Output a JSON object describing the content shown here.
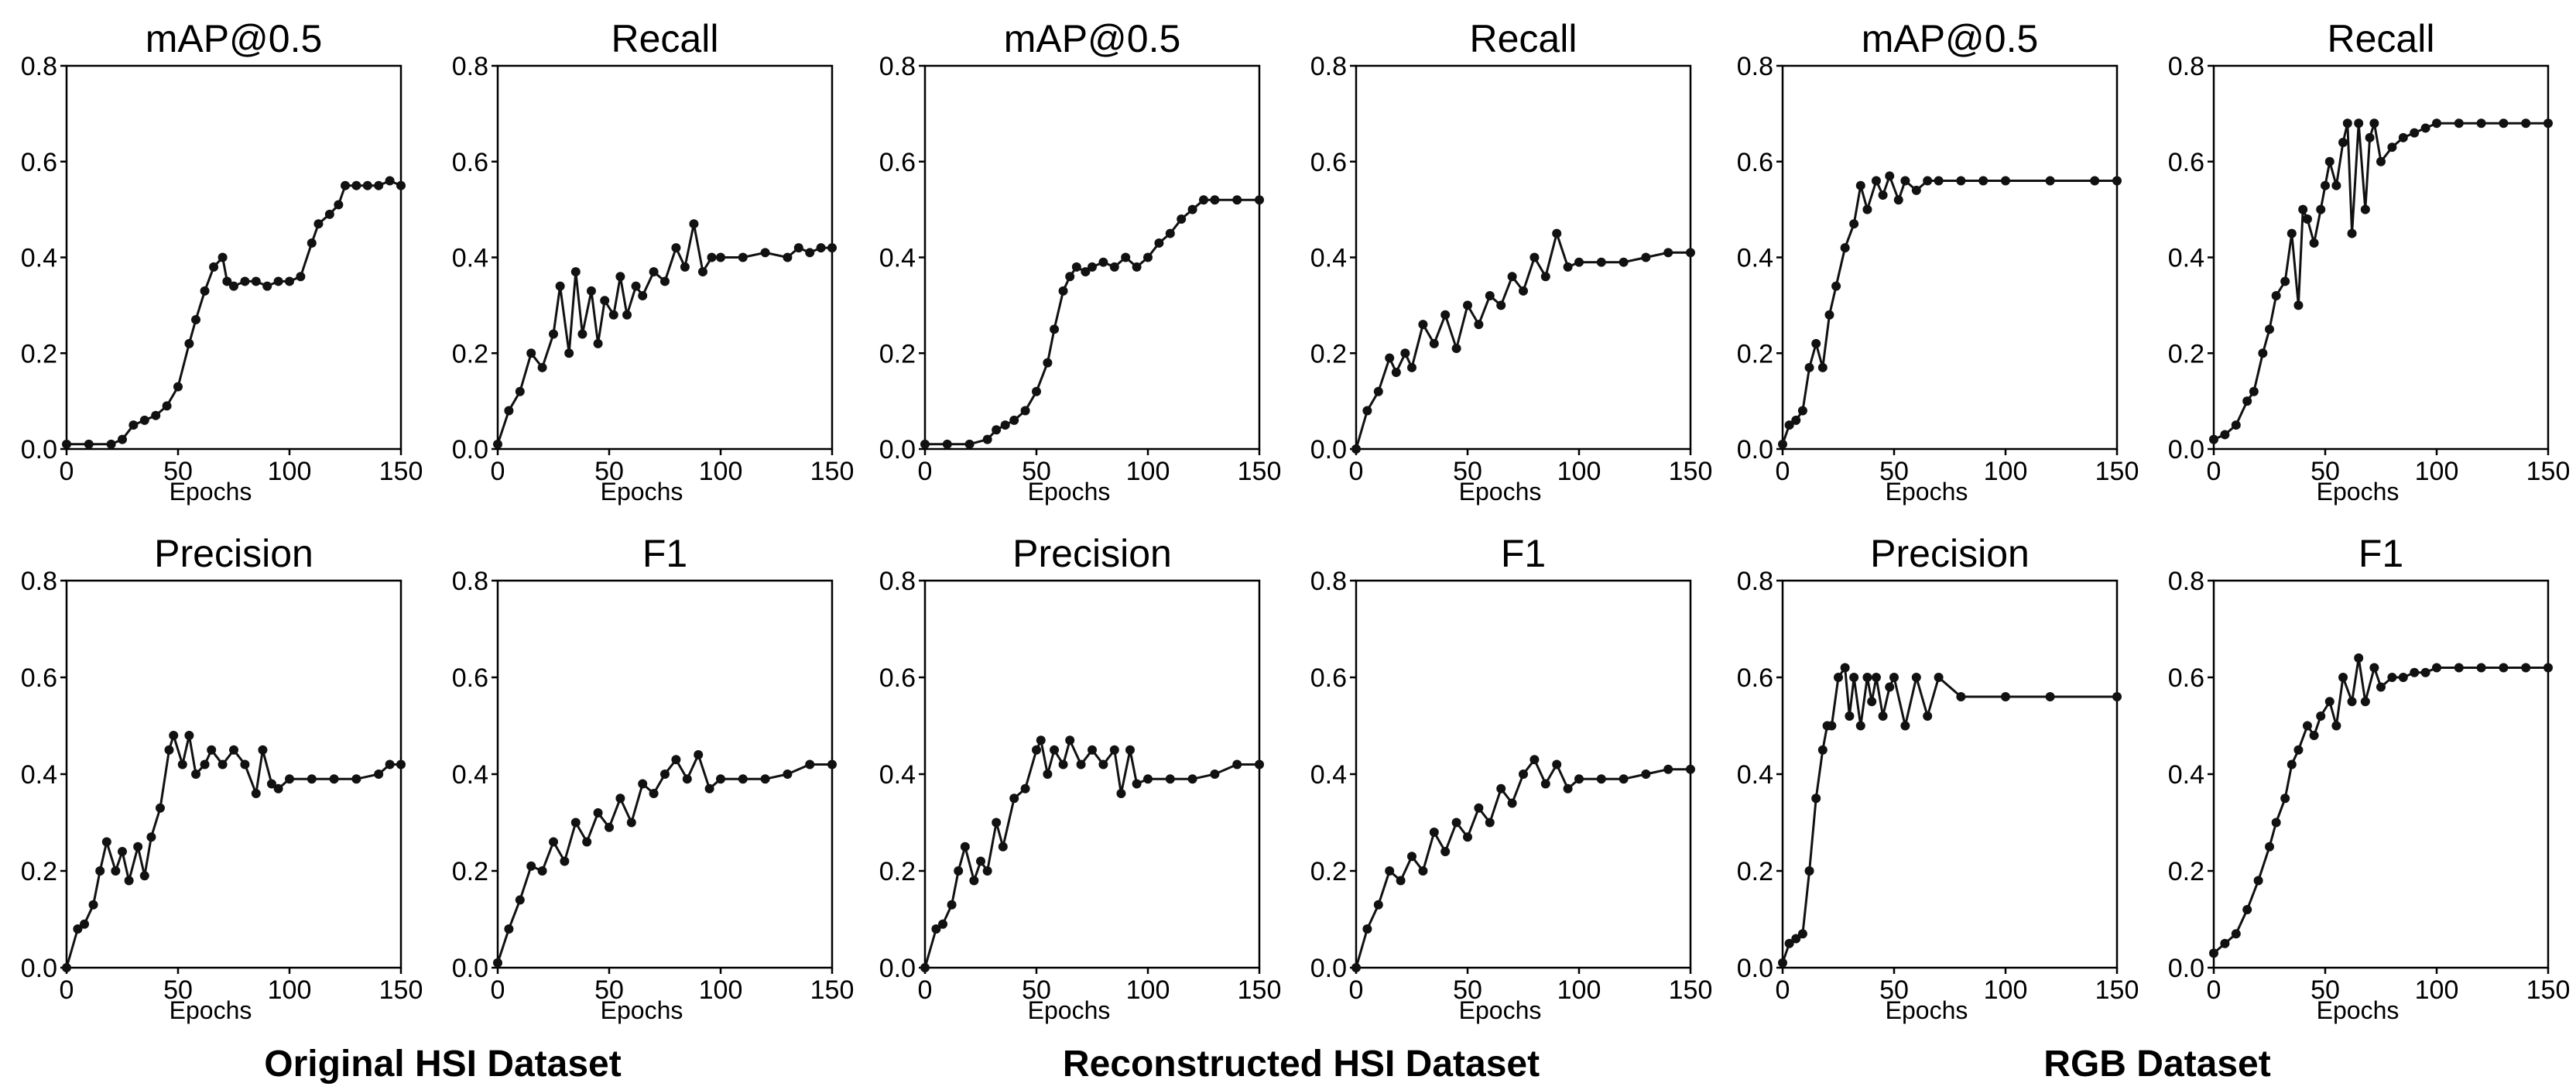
{
  "chart_data": [
    {
      "type": "line",
      "group": "Original HSI Dataset",
      "title": "mAP@0.5",
      "xlabel": "Epochs",
      "ylabel": "",
      "xlim": [
        0,
        150
      ],
      "ylim": [
        0,
        0.8
      ],
      "xticks": [
        "0",
        "50",
        "100",
        "150"
      ],
      "yticks": [
        "0.0",
        "0.2",
        "0.4",
        "0.6",
        "0.8"
      ],
      "x": [
        0,
        10,
        20,
        25,
        30,
        35,
        40,
        45,
        50,
        55,
        58,
        62,
        66,
        70,
        72,
        75,
        80,
        85,
        90,
        95,
        100,
        105,
        110,
        113,
        118,
        122,
        125,
        130,
        135,
        140,
        145,
        150
      ],
      "y": [
        0.01,
        0.01,
        0.01,
        0.02,
        0.05,
        0.06,
        0.07,
        0.09,
        0.13,
        0.22,
        0.27,
        0.33,
        0.38,
        0.4,
        0.35,
        0.34,
        0.35,
        0.35,
        0.34,
        0.35,
        0.35,
        0.36,
        0.43,
        0.47,
        0.49,
        0.51,
        0.55,
        0.55,
        0.55,
        0.55,
        0.56,
        0.55
      ]
    },
    {
      "type": "line",
      "group": "Original HSI Dataset",
      "title": "Recall",
      "xlabel": "Epochs",
      "ylabel": "",
      "xlim": [
        0,
        150
      ],
      "ylim": [
        0,
        0.8
      ],
      "xticks": [
        "0",
        "50",
        "100",
        "150"
      ],
      "yticks": [
        "0.0",
        "0.2",
        "0.4",
        "0.6",
        "0.8"
      ],
      "x": [
        0,
        5,
        10,
        15,
        20,
        25,
        28,
        32,
        35,
        38,
        42,
        45,
        48,
        52,
        55,
        58,
        62,
        65,
        70,
        75,
        80,
        84,
        88,
        92,
        96,
        100,
        110,
        120,
        130,
        135,
        140,
        145,
        150
      ],
      "y": [
        0.01,
        0.08,
        0.12,
        0.2,
        0.17,
        0.24,
        0.34,
        0.2,
        0.37,
        0.24,
        0.33,
        0.22,
        0.31,
        0.28,
        0.36,
        0.28,
        0.34,
        0.32,
        0.37,
        0.35,
        0.42,
        0.38,
        0.47,
        0.37,
        0.4,
        0.4,
        0.4,
        0.41,
        0.4,
        0.42,
        0.41,
        0.42,
        0.42
      ]
    },
    {
      "type": "line",
      "group": "Reconstructed HSI Dataset",
      "title": "mAP@0.5",
      "xlabel": "Epochs",
      "ylabel": "",
      "xlim": [
        0,
        150
      ],
      "ylim": [
        0,
        0.8
      ],
      "xticks": [
        "0",
        "50",
        "100",
        "150"
      ],
      "yticks": [
        "0.0",
        "0.2",
        "0.4",
        "0.6",
        "0.8"
      ],
      "x": [
        0,
        10,
        20,
        28,
        32,
        36,
        40,
        45,
        50,
        55,
        58,
        62,
        65,
        68,
        72,
        75,
        80,
        85,
        90,
        95,
        100,
        105,
        110,
        115,
        120,
        125,
        130,
        140,
        150
      ],
      "y": [
        0.01,
        0.01,
        0.01,
        0.02,
        0.04,
        0.05,
        0.06,
        0.08,
        0.12,
        0.18,
        0.25,
        0.33,
        0.36,
        0.38,
        0.37,
        0.38,
        0.39,
        0.38,
        0.4,
        0.38,
        0.4,
        0.43,
        0.45,
        0.48,
        0.5,
        0.52,
        0.52,
        0.52,
        0.52
      ]
    },
    {
      "type": "line",
      "group": "Reconstructed HSI Dataset",
      "title": "Recall",
      "xlabel": "Epochs",
      "ylabel": "",
      "xlim": [
        0,
        150
      ],
      "ylim": [
        0,
        0.8
      ],
      "xticks": [
        "0",
        "50",
        "100",
        "150"
      ],
      "yticks": [
        "0.0",
        "0.2",
        "0.4",
        "0.6",
        "0.8"
      ],
      "x": [
        0,
        5,
        10,
        15,
        18,
        22,
        25,
        30,
        35,
        40,
        45,
        50,
        55,
        60,
        65,
        70,
        75,
        80,
        85,
        90,
        95,
        100,
        110,
        120,
        130,
        140,
        150
      ],
      "y": [
        0.0,
        0.08,
        0.12,
        0.19,
        0.16,
        0.2,
        0.17,
        0.26,
        0.22,
        0.28,
        0.21,
        0.3,
        0.26,
        0.32,
        0.3,
        0.36,
        0.33,
        0.4,
        0.36,
        0.45,
        0.38,
        0.39,
        0.39,
        0.39,
        0.4,
        0.41,
        0.41
      ]
    },
    {
      "type": "line",
      "group": "RGB Dataset",
      "title": "mAP@0.5",
      "xlabel": "Epochs",
      "ylabel": "",
      "xlim": [
        0,
        150
      ],
      "ylim": [
        0,
        0.8
      ],
      "xticks": [
        "0",
        "50",
        "100",
        "150"
      ],
      "yticks": [
        "0.0",
        "0.2",
        "0.4",
        "0.6",
        "0.8"
      ],
      "x": [
        0,
        3,
        6,
        9,
        12,
        15,
        18,
        21,
        24,
        28,
        32,
        35,
        38,
        42,
        45,
        48,
        52,
        55,
        60,
        65,
        70,
        80,
        90,
        100,
        120,
        140,
        150
      ],
      "y": [
        0.01,
        0.05,
        0.06,
        0.08,
        0.17,
        0.22,
        0.17,
        0.28,
        0.34,
        0.42,
        0.47,
        0.55,
        0.5,
        0.56,
        0.53,
        0.57,
        0.52,
        0.56,
        0.54,
        0.56,
        0.56,
        0.56,
        0.56,
        0.56,
        0.56,
        0.56,
        0.56
      ]
    },
    {
      "type": "line",
      "group": "RGB Dataset",
      "title": "Recall",
      "xlabel": "Epochs",
      "ylabel": "",
      "xlim": [
        0,
        150
      ],
      "ylim": [
        0,
        0.8
      ],
      "xticks": [
        "0",
        "50",
        "100",
        "150"
      ],
      "yticks": [
        "0.0",
        "0.2",
        "0.4",
        "0.6",
        "0.8"
      ],
      "x": [
        0,
        5,
        10,
        15,
        18,
        22,
        25,
        28,
        32,
        35,
        38,
        40,
        42,
        45,
        48,
        50,
        52,
        55,
        58,
        60,
        62,
        65,
        68,
        70,
        72,
        75,
        80,
        85,
        90,
        95,
        100,
        110,
        120,
        130,
        140,
        150
      ],
      "y": [
        0.02,
        0.03,
        0.05,
        0.1,
        0.12,
        0.2,
        0.25,
        0.32,
        0.35,
        0.45,
        0.3,
        0.5,
        0.48,
        0.43,
        0.5,
        0.55,
        0.6,
        0.55,
        0.64,
        0.68,
        0.45,
        0.68,
        0.5,
        0.65,
        0.68,
        0.6,
        0.63,
        0.65,
        0.66,
        0.67,
        0.68,
        0.68,
        0.68,
        0.68,
        0.68,
        0.68
      ]
    },
    {
      "type": "line",
      "group": "Original HSI Dataset",
      "title": "Precision",
      "xlabel": "Epochs",
      "ylabel": "",
      "xlim": [
        0,
        150
      ],
      "ylim": [
        0,
        0.8
      ],
      "xticks": [
        "0",
        "50",
        "100",
        "150"
      ],
      "yticks": [
        "0.0",
        "0.2",
        "0.4",
        "0.6",
        "0.8"
      ],
      "x": [
        0,
        5,
        8,
        12,
        15,
        18,
        22,
        25,
        28,
        32,
        35,
        38,
        42,
        46,
        48,
        52,
        55,
        58,
        62,
        65,
        70,
        75,
        80,
        85,
        88,
        92,
        95,
        100,
        110,
        120,
        130,
        140,
        145,
        150
      ],
      "y": [
        0.0,
        0.08,
        0.09,
        0.13,
        0.2,
        0.26,
        0.2,
        0.24,
        0.18,
        0.25,
        0.19,
        0.27,
        0.33,
        0.45,
        0.48,
        0.42,
        0.48,
        0.4,
        0.42,
        0.45,
        0.42,
        0.45,
        0.42,
        0.36,
        0.45,
        0.38,
        0.37,
        0.39,
        0.39,
        0.39,
        0.39,
        0.4,
        0.42,
        0.42
      ]
    },
    {
      "type": "line",
      "group": "Original HSI Dataset",
      "title": "F1",
      "xlabel": "Epochs",
      "ylabel": "",
      "xlim": [
        0,
        150
      ],
      "ylim": [
        0,
        0.8
      ],
      "xticks": [
        "0",
        "50",
        "100",
        "150"
      ],
      "yticks": [
        "0.0",
        "0.2",
        "0.4",
        "0.6",
        "0.8"
      ],
      "x": [
        0,
        5,
        10,
        15,
        20,
        25,
        30,
        35,
        40,
        45,
        50,
        55,
        60,
        65,
        70,
        75,
        80,
        85,
        90,
        95,
        100,
        110,
        120,
        130,
        140,
        150
      ],
      "y": [
        0.01,
        0.08,
        0.14,
        0.21,
        0.2,
        0.26,
        0.22,
        0.3,
        0.26,
        0.32,
        0.29,
        0.35,
        0.3,
        0.38,
        0.36,
        0.4,
        0.43,
        0.39,
        0.44,
        0.37,
        0.39,
        0.39,
        0.39,
        0.4,
        0.42,
        0.42
      ]
    },
    {
      "type": "line",
      "group": "Reconstructed HSI Dataset",
      "title": "Precision",
      "xlabel": "Epochs",
      "ylabel": "",
      "xlim": [
        0,
        150
      ],
      "ylim": [
        0,
        0.8
      ],
      "xticks": [
        "0",
        "50",
        "100",
        "150"
      ],
      "yticks": [
        "0.0",
        "0.2",
        "0.4",
        "0.6",
        "0.8"
      ],
      "x": [
        0,
        5,
        8,
        12,
        15,
        18,
        22,
        25,
        28,
        32,
        35,
        40,
        45,
        50,
        52,
        55,
        58,
        62,
        65,
        70,
        75,
        80,
        85,
        88,
        92,
        95,
        100,
        110,
        120,
        130,
        140,
        150
      ],
      "y": [
        0.0,
        0.08,
        0.09,
        0.13,
        0.2,
        0.25,
        0.18,
        0.22,
        0.2,
        0.3,
        0.25,
        0.35,
        0.37,
        0.45,
        0.47,
        0.4,
        0.45,
        0.42,
        0.47,
        0.42,
        0.45,
        0.42,
        0.45,
        0.36,
        0.45,
        0.38,
        0.39,
        0.39,
        0.39,
        0.4,
        0.42,
        0.42
      ]
    },
    {
      "type": "line",
      "group": "Reconstructed HSI Dataset",
      "title": "F1",
      "xlabel": "Epochs",
      "ylabel": "",
      "xlim": [
        0,
        150
      ],
      "ylim": [
        0,
        0.8
      ],
      "xticks": [
        "0",
        "50",
        "100",
        "150"
      ],
      "yticks": [
        "0.0",
        "0.2",
        "0.4",
        "0.6",
        "0.8"
      ],
      "x": [
        0,
        5,
        10,
        15,
        20,
        25,
        30,
        35,
        40,
        45,
        50,
        55,
        60,
        65,
        70,
        75,
        80,
        85,
        90,
        95,
        100,
        110,
        120,
        130,
        140,
        150
      ],
      "y": [
        0.0,
        0.08,
        0.13,
        0.2,
        0.18,
        0.23,
        0.2,
        0.28,
        0.24,
        0.3,
        0.27,
        0.33,
        0.3,
        0.37,
        0.34,
        0.4,
        0.43,
        0.38,
        0.42,
        0.37,
        0.39,
        0.39,
        0.39,
        0.4,
        0.41,
        0.41
      ]
    },
    {
      "type": "line",
      "group": "RGB Dataset",
      "title": "Precision",
      "xlabel": "Epochs",
      "ylabel": "",
      "xlim": [
        0,
        150
      ],
      "ylim": [
        0,
        0.8
      ],
      "xticks": [
        "0",
        "50",
        "100",
        "150"
      ],
      "yticks": [
        "0.0",
        "0.2",
        "0.4",
        "0.6",
        "0.8"
      ],
      "x": [
        0,
        3,
        6,
        9,
        12,
        15,
        18,
        20,
        22,
        25,
        28,
        30,
        32,
        35,
        38,
        40,
        42,
        45,
        48,
        50,
        55,
        60,
        65,
        70,
        80,
        100,
        120,
        150
      ],
      "y": [
        0.01,
        0.05,
        0.06,
        0.07,
        0.2,
        0.35,
        0.45,
        0.5,
        0.5,
        0.6,
        0.62,
        0.52,
        0.6,
        0.5,
        0.6,
        0.55,
        0.6,
        0.52,
        0.58,
        0.6,
        0.5,
        0.6,
        0.52,
        0.6,
        0.56,
        0.56,
        0.56,
        0.56
      ]
    },
    {
      "type": "line",
      "group": "RGB Dataset",
      "title": "F1",
      "xlabel": "Epochs",
      "ylabel": "",
      "xlim": [
        0,
        150
      ],
      "ylim": [
        0,
        0.8
      ],
      "xticks": [
        "0",
        "50",
        "100",
        "150"
      ],
      "yticks": [
        "0.0",
        "0.2",
        "0.4",
        "0.6",
        "0.8"
      ],
      "x": [
        0,
        5,
        10,
        15,
        20,
        25,
        28,
        32,
        35,
        38,
        42,
        45,
        48,
        52,
        55,
        58,
        62,
        65,
        68,
        72,
        75,
        80,
        85,
        90,
        95,
        100,
        110,
        120,
        130,
        140,
        150
      ],
      "y": [
        0.03,
        0.05,
        0.07,
        0.12,
        0.18,
        0.25,
        0.3,
        0.35,
        0.42,
        0.45,
        0.5,
        0.48,
        0.52,
        0.55,
        0.5,
        0.6,
        0.55,
        0.64,
        0.55,
        0.62,
        0.58,
        0.6,
        0.6,
        0.61,
        0.61,
        0.62,
        0.62,
        0.62,
        0.62,
        0.62,
        0.62
      ]
    }
  ],
  "captions": [
    "Original HSI Dataset",
    "Reconstructed HSI Dataset",
    "RGB Dataset"
  ]
}
